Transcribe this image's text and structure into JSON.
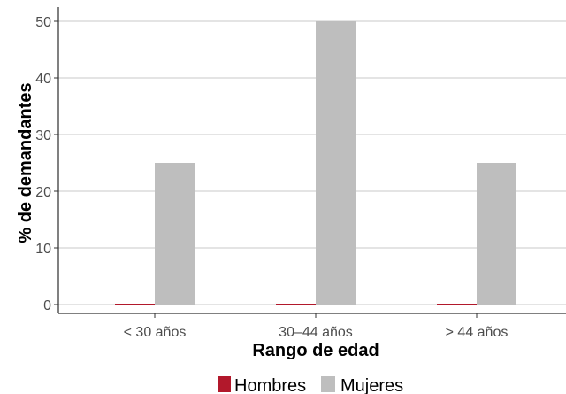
{
  "chart_data": {
    "type": "bar",
    "title": "",
    "xlabel": "Rango de edad",
    "ylabel": "% de demandantes",
    "categories": [
      "< 30 años",
      "30–44 años",
      "> 44 años"
    ],
    "series": [
      {
        "name": "Hombres",
        "color": "#b2182b",
        "values": [
          0,
          0,
          0
        ]
      },
      {
        "name": "Mujeres",
        "color": "#bebebe",
        "values": [
          25,
          50,
          25
        ]
      }
    ],
    "ylim": [
      0,
      52
    ],
    "yticks": [
      0,
      10,
      20,
      30,
      40,
      50
    ],
    "grid": {
      "horizontal": true,
      "vertical": false,
      "color": "#c8c8c8"
    },
    "legend_position": "bottom"
  }
}
